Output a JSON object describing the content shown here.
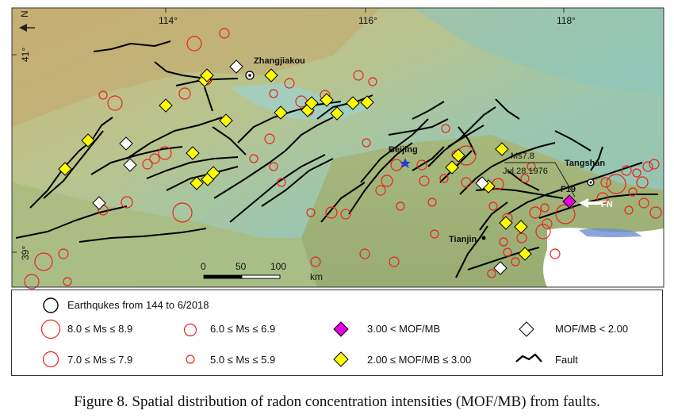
{
  "map": {
    "lon_ticks": [
      "114°",
      "116°",
      "118°"
    ],
    "lat_ticks": [
      "41°",
      "39°"
    ],
    "north_label": "N",
    "cities": {
      "zhangjiakou": "Zhangjiakou",
      "beijing": "Beijing",
      "tianjin": "Tianjin",
      "tangshan": "Tangshan"
    },
    "event": {
      "magnitude": "Ms7.8",
      "date": "Jul.28.1976"
    },
    "fault_label": "F19",
    "arrow_label": "FN",
    "scale": {
      "ticks": [
        "0",
        "50",
        "100"
      ],
      "unit": "km"
    },
    "colors": {
      "earthquake": "#e8231e",
      "high": "#e600e6",
      "mid": "#ffff00",
      "low": "#ffffff",
      "fault": "#000000"
    }
  },
  "legend": {
    "earthquakes": "Earthqukes from 144 to 6/2018",
    "ms8": "8.0 ≤ Ms ≤ 8.9",
    "ms7": "7.0 ≤ Ms ≤ 7.9",
    "ms6": "6.0 ≤ Ms ≤ 6.9",
    "ms5": "5.0 ≤ Ms ≤ 5.9",
    "high": "3.00 < MOF/MB",
    "mid": "2.00 ≤ MOF/MB ≤ 3.00",
    "low": "MOF/MB < 2.00",
    "fault": "Fault"
  },
  "caption": "Figure 8. Spatial distribution of radon concentration intensities (MOF/MB) from faults."
}
